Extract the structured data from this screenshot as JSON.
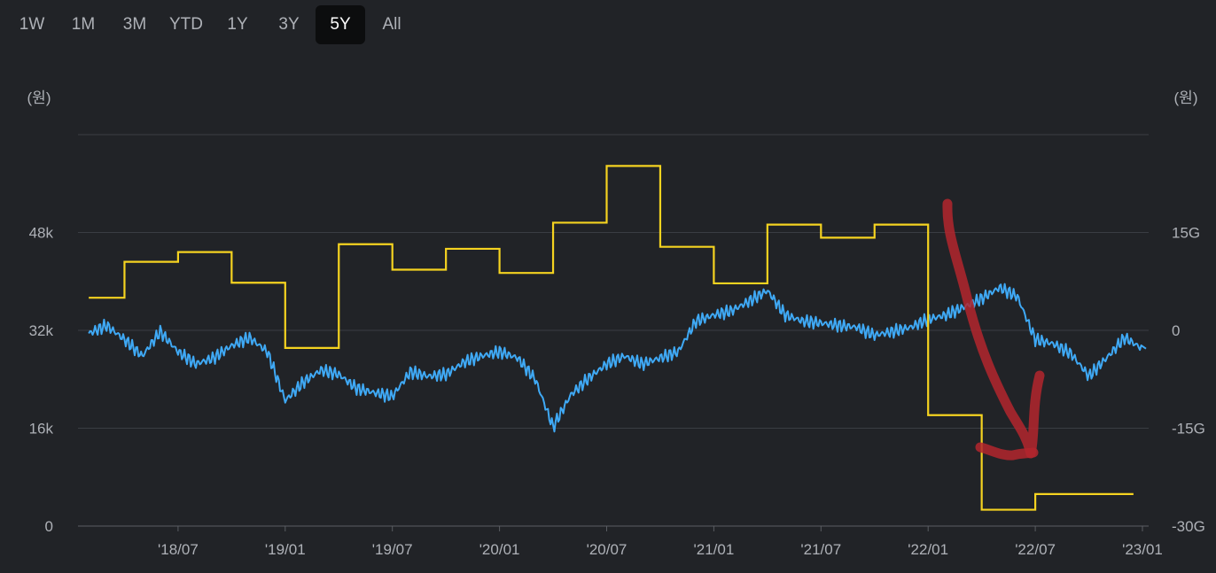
{
  "range_tabs": [
    {
      "label": "1W",
      "active": false
    },
    {
      "label": "1M",
      "active": false
    },
    {
      "label": "3M",
      "active": false
    },
    {
      "label": "YTD",
      "active": false
    },
    {
      "label": "1Y",
      "active": false
    },
    {
      "label": "3Y",
      "active": false
    },
    {
      "label": "5Y",
      "active": true
    },
    {
      "label": "All",
      "active": false
    }
  ],
  "colors": {
    "background": "#212327",
    "price_line": "#3fa9f5",
    "step_line": "#f5d320",
    "gridline": "#3a3d43",
    "annotation": "#b3262e"
  },
  "chart_data": {
    "type": "line",
    "left_unit": "(원)",
    "right_unit": "(원)",
    "x_tick_labels": [
      "'18/07",
      "'19/01",
      "'19/07",
      "'20/01",
      "'20/07",
      "'21/01",
      "'21/07",
      "'22/01",
      "'22/07",
      "'23/01"
    ],
    "x_range": [
      "2018-02",
      "2023-01"
    ],
    "left_axis": {
      "ticks": [
        "0",
        "16k",
        "32k",
        "48k"
      ],
      "tick_values": [
        0,
        16000,
        32000,
        48000
      ],
      "ylim": [
        0,
        64000
      ]
    },
    "right_axis": {
      "ticks": [
        "-30G",
        "-15G",
        "0",
        "15G"
      ],
      "tick_values": [
        -30,
        -15,
        0,
        15
      ],
      "ylim": [
        -30,
        30
      ]
    },
    "grid": true,
    "series": [
      {
        "axis": "left",
        "style": "line",
        "color": "#3fa9f5",
        "points": [
          [
            "2018-02",
            31500
          ],
          [
            "2018-03",
            32800
          ],
          [
            "2018-04",
            30500
          ],
          [
            "2018-05",
            27800
          ],
          [
            "2018-06",
            31800
          ],
          [
            "2018-07",
            28500
          ],
          [
            "2018-08",
            26500
          ],
          [
            "2018-09",
            27500
          ],
          [
            "2018-10",
            29500
          ],
          [
            "2018-11",
            30800
          ],
          [
            "2018-12",
            28500
          ],
          [
            "2019-01",
            20500
          ],
          [
            "2019-02",
            23500
          ],
          [
            "2019-03",
            25500
          ],
          [
            "2019-04",
            24800
          ],
          [
            "2019-05",
            22500
          ],
          [
            "2019-06",
            21800
          ],
          [
            "2019-07",
            21200
          ],
          [
            "2019-08",
            25200
          ],
          [
            "2019-09",
            24500
          ],
          [
            "2019-10",
            24800
          ],
          [
            "2019-11",
            26800
          ],
          [
            "2019-12",
            27800
          ],
          [
            "2020-01",
            28500
          ],
          [
            "2020-02",
            27500
          ],
          [
            "2020-03",
            24000
          ],
          [
            "2020-04",
            16200
          ],
          [
            "2020-05",
            21500
          ],
          [
            "2020-06",
            24200
          ],
          [
            "2020-07",
            26500
          ],
          [
            "2020-08",
            27800
          ],
          [
            "2020-09",
            26500
          ],
          [
            "2020-10",
            27500
          ],
          [
            "2020-11",
            28500
          ],
          [
            "2020-12",
            33500
          ],
          [
            "2021-01",
            34500
          ],
          [
            "2021-02",
            35200
          ],
          [
            "2021-03",
            36800
          ],
          [
            "2021-04",
            38500
          ],
          [
            "2021-05",
            34500
          ],
          [
            "2021-06",
            33500
          ],
          [
            "2021-07",
            33200
          ],
          [
            "2021-08",
            32800
          ],
          [
            "2021-09",
            32500
          ],
          [
            "2021-10",
            31200
          ],
          [
            "2021-11",
            31800
          ],
          [
            "2021-12",
            32500
          ],
          [
            "2022-01",
            33800
          ],
          [
            "2022-02",
            34500
          ],
          [
            "2022-03",
            35800
          ],
          [
            "2022-04",
            37200
          ],
          [
            "2022-05",
            39000
          ],
          [
            "2022-06",
            37500
          ],
          [
            "2022-07",
            30500
          ],
          [
            "2022-08",
            29800
          ],
          [
            "2022-09",
            28200
          ],
          [
            "2022-10",
            24500
          ],
          [
            "2022-11",
            27500
          ],
          [
            "2022-12",
            30800
          ],
          [
            "2023-01",
            29000
          ]
        ]
      },
      {
        "axis": "right",
        "style": "step",
        "color": "#f5d320",
        "points": [
          [
            "2018-02",
            5
          ],
          [
            "2018-04",
            10.5
          ],
          [
            "2018-07",
            12
          ],
          [
            "2018-10",
            7.3
          ],
          [
            "2019-01",
            -2.7
          ],
          [
            "2019-04",
            13.2
          ],
          [
            "2019-07",
            9.3
          ],
          [
            "2019-10",
            12.5
          ],
          [
            "2020-01",
            8.8
          ],
          [
            "2020-04",
            16.5
          ],
          [
            "2020-07",
            25.2
          ],
          [
            "2020-10",
            12.8
          ],
          [
            "2021-01",
            7.2
          ],
          [
            "2021-04",
            16.2
          ],
          [
            "2021-07",
            14.2
          ],
          [
            "2021-10",
            16.2
          ],
          [
            "2022-01",
            -13
          ],
          [
            "2022-04",
            -27.5
          ],
          [
            "2022-07",
            -25.1
          ],
          [
            "2022-10",
            -25.1
          ]
        ]
      }
    ]
  }
}
